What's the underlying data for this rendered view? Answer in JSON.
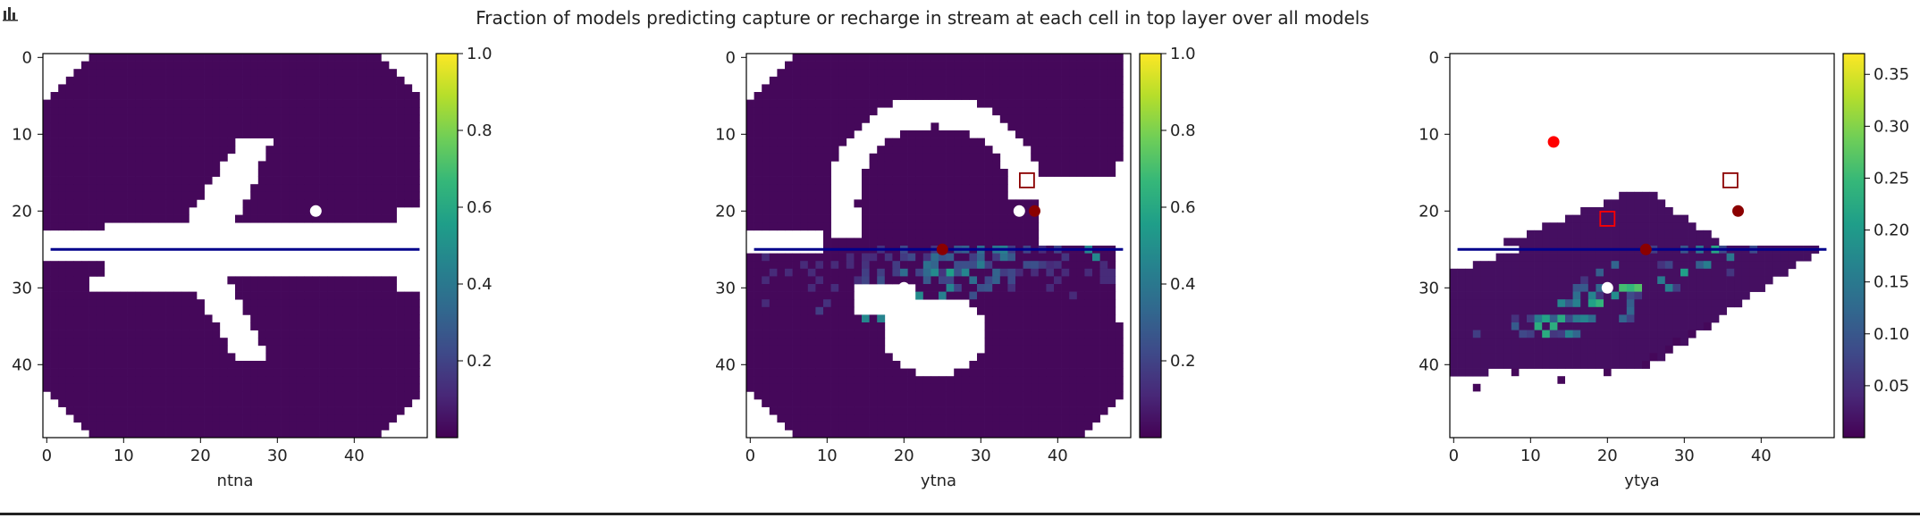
{
  "suptitle": "Fraction of models predicting capture or recharge in stream at each cell in top layer over all models",
  "toolbar_icon": "bar-chart-icon",
  "colormap": [
    "#440154",
    "#482878",
    "#3e4a89",
    "#31688e",
    "#26828e",
    "#1f9e89",
    "#35b779",
    "#6ece58",
    "#b5de2b",
    "#fde725"
  ],
  "marker_colors": {
    "white": "#ffffff",
    "dark_red": "#8b0000",
    "red": "#ff0000",
    "stream_line": "#00008b"
  },
  "chart_data": [
    {
      "type": "heatmap",
      "xlabel": "ntna",
      "grid_size": [
        50,
        50
      ],
      "xticks": [
        0,
        10,
        20,
        30,
        40
      ],
      "yticks": [
        0,
        10,
        20,
        30,
        40
      ],
      "colorbar": {
        "range": [
          0.0,
          1.0
        ],
        "ticks": [
          "0.2",
          "0.4",
          "0.6",
          "0.8",
          "1.0"
        ]
      },
      "stream_row": 25,
      "stream_value": 1.0,
      "markers": [
        {
          "kind": "circle",
          "color": "white",
          "x": 35,
          "y": 20
        }
      ]
    },
    {
      "type": "heatmap",
      "xlabel": "ytna",
      "grid_size": [
        50,
        50
      ],
      "xticks": [
        0,
        10,
        20,
        30,
        40
      ],
      "yticks": [
        0,
        10,
        20,
        30,
        40
      ],
      "colorbar": {
        "range": [
          0.0,
          1.0
        ],
        "ticks": [
          "0.2",
          "0.4",
          "0.6",
          "0.8",
          "1.0"
        ]
      },
      "stream_row": 25,
      "markers": [
        {
          "kind": "circle",
          "color": "white",
          "x": 35,
          "y": 20
        },
        {
          "kind": "circle",
          "color": "dark_red",
          "x": 37,
          "y": 20
        },
        {
          "kind": "circle",
          "color": "dark_red",
          "x": 25,
          "y": 25
        },
        {
          "kind": "circle",
          "color": "white",
          "x": 20,
          "y": 30
        },
        {
          "kind": "square",
          "color": "dark_red",
          "x": 36,
          "y": 16
        }
      ]
    },
    {
      "type": "heatmap",
      "xlabel": "ytya",
      "grid_size": [
        50,
        50
      ],
      "xticks": [
        0,
        10,
        20,
        30,
        40
      ],
      "yticks": [
        0,
        10,
        20,
        30,
        40
      ],
      "colorbar": {
        "range": [
          0.0,
          0.37
        ],
        "ticks": [
          "0.05",
          "0.10",
          "0.15",
          "0.20",
          "0.25",
          "0.30",
          "0.35"
        ]
      },
      "stream_row": 25,
      "markers": [
        {
          "kind": "circle",
          "color": "red",
          "x": 13,
          "y": 11
        },
        {
          "kind": "circle",
          "color": "dark_red",
          "x": 37,
          "y": 20
        },
        {
          "kind": "circle",
          "color": "dark_red",
          "x": 25,
          "y": 25
        },
        {
          "kind": "circle",
          "color": "white",
          "x": 20,
          "y": 30
        },
        {
          "kind": "square",
          "color": "red",
          "x": 20,
          "y": 21
        },
        {
          "kind": "square",
          "color": "dark_red",
          "x": 36,
          "y": 16
        }
      ]
    }
  ]
}
